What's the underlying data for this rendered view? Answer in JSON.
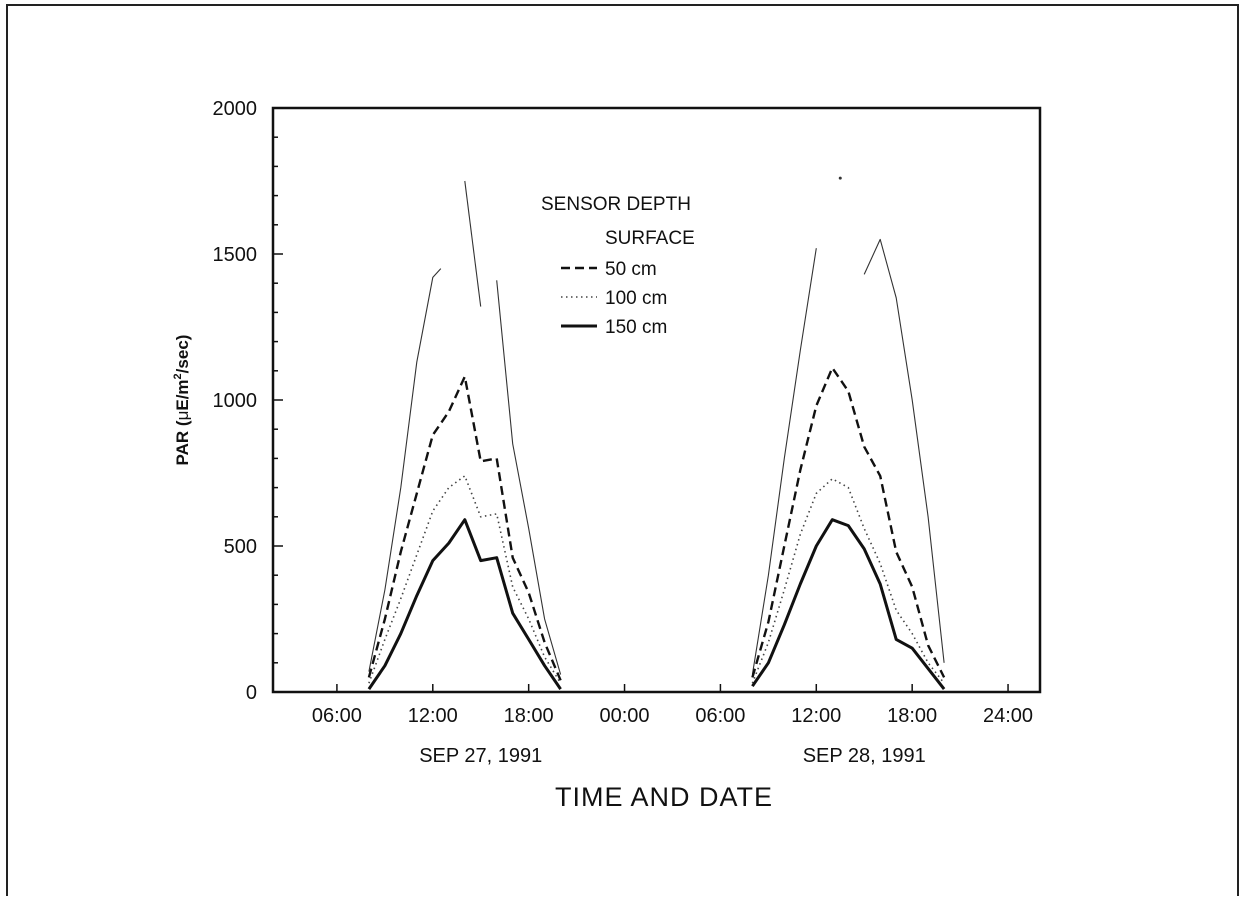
{
  "chart_data": {
    "type": "line",
    "xlabel": "TIME AND DATE",
    "ylabel_prefix": "PAR (",
    "ylabel_mu": "μ",
    "ylabel_unit": "E/m",
    "ylabel_sup": "2",
    "ylabel_suffix": "/sec)",
    "ylim": [
      0,
      2000
    ],
    "y_ticks": [
      "0",
      "500",
      "1000",
      "1500",
      "2000"
    ],
    "xlim": [
      "1991-09-27 02:00",
      "1991-09-29 02:00"
    ],
    "x_ticks": [
      {
        "time": "1991-09-27 06:00",
        "label": "06:00"
      },
      {
        "time": "1991-09-27 12:00",
        "label": "12:00"
      },
      {
        "time": "1991-09-27 18:00",
        "label": "18:00"
      },
      {
        "time": "1991-09-28 00:00",
        "label": "00:00"
      },
      {
        "time": "1991-09-28 06:00",
        "label": "06:00"
      },
      {
        "time": "1991-09-28 12:00",
        "label": "12:00"
      },
      {
        "time": "1991-09-28 18:00",
        "label": "18:00"
      },
      {
        "time": "1991-09-29 00:00",
        "label": "24:00"
      }
    ],
    "date_labels": [
      {
        "time": "1991-09-27 15:00",
        "label": "SEP 27, 1991"
      },
      {
        "time": "1991-09-28 15:00",
        "label": "SEP 28, 1991"
      }
    ],
    "legend": {
      "title": "SENSOR DEPTH",
      "position": "top-center"
    },
    "series": [
      {
        "name": "SURFACE",
        "style": "thin-solid",
        "segments": [
          [
            [
              "1991-09-27 08:00",
              70
            ],
            [
              "1991-09-27 09:00",
              350
            ],
            [
              "1991-09-27 10:00",
              700
            ],
            [
              "1991-09-27 11:00",
              1130
            ],
            [
              "1991-09-27 12:00",
              1420
            ],
            [
              "1991-09-27 12:30",
              1450
            ]
          ],
          [
            [
              "1991-09-27 14:00",
              1750
            ],
            [
              "1991-09-27 15:00",
              1320
            ]
          ],
          [
            [
              "1991-09-27 16:00",
              1410
            ],
            [
              "1991-09-27 17:00",
              850
            ],
            [
              "1991-09-27 18:00",
              560
            ],
            [
              "1991-09-27 19:00",
              250
            ],
            [
              "1991-09-27 20:00",
              60
            ]
          ],
          [
            [
              "1991-09-28 08:00",
              60
            ],
            [
              "1991-09-28 09:00",
              400
            ],
            [
              "1991-09-28 10:00",
              800
            ],
            [
              "1991-09-28 11:00",
              1170
            ],
            [
              "1991-09-28 12:00",
              1520
            ]
          ],
          [
            [
              "1991-09-28 13:30",
              1760
            ]
          ],
          [
            [
              "1991-09-28 15:00",
              1430
            ],
            [
              "1991-09-28 16:00",
              1550
            ],
            [
              "1991-09-28 17:00",
              1350
            ],
            [
              "1991-09-28 18:00",
              1000
            ],
            [
              "1991-09-28 19:00",
              600
            ],
            [
              "1991-09-28 20:00",
              100
            ]
          ]
        ]
      },
      {
        "name": "50 cm",
        "style": "dashed",
        "segments": [
          [
            [
              "1991-09-27 08:00",
              50
            ],
            [
              "1991-09-27 09:00",
              250
            ],
            [
              "1991-09-27 10:00",
              480
            ],
            [
              "1991-09-27 11:00",
              680
            ],
            [
              "1991-09-27 12:00",
              880
            ],
            [
              "1991-09-27 13:00",
              960
            ],
            [
              "1991-09-27 14:00",
              1080
            ],
            [
              "1991-09-27 15:00",
              790
            ],
            [
              "1991-09-27 16:00",
              800
            ],
            [
              "1991-09-27 17:00",
              460
            ],
            [
              "1991-09-27 18:00",
              340
            ],
            [
              "1991-09-27 19:00",
              170
            ],
            [
              "1991-09-27 20:00",
              40
            ]
          ],
          [
            [
              "1991-09-28 08:00",
              50
            ],
            [
              "1991-09-28 09:00",
              240
            ],
            [
              "1991-09-28 10:00",
              500
            ],
            [
              "1991-09-28 11:00",
              760
            ],
            [
              "1991-09-28 12:00",
              980
            ],
            [
              "1991-09-28 13:00",
              1110
            ],
            [
              "1991-09-28 14:00",
              1030
            ],
            [
              "1991-09-28 15:00",
              840
            ],
            [
              "1991-09-28 16:00",
              740
            ],
            [
              "1991-09-28 17:00",
              480
            ],
            [
              "1991-09-28 18:00",
              360
            ],
            [
              "1991-09-28 19:00",
              160
            ],
            [
              "1991-09-28 20:00",
              50
            ]
          ]
        ]
      },
      {
        "name": "100 cm",
        "style": "dotted",
        "segments": [
          [
            [
              "1991-09-27 08:00",
              30
            ],
            [
              "1991-09-27 09:00",
              180
            ],
            [
              "1991-09-27 10:00",
              320
            ],
            [
              "1991-09-27 11:00",
              470
            ],
            [
              "1991-09-27 12:00",
              620
            ],
            [
              "1991-09-27 13:00",
              700
            ],
            [
              "1991-09-27 14:00",
              740
            ],
            [
              "1991-09-27 15:00",
              600
            ],
            [
              "1991-09-27 16:00",
              610
            ],
            [
              "1991-09-27 17:00",
              360
            ],
            [
              "1991-09-27 18:00",
              250
            ],
            [
              "1991-09-27 19:00",
              120
            ],
            [
              "1991-09-27 20:00",
              30
            ]
          ],
          [
            [
              "1991-09-28 08:00",
              30
            ],
            [
              "1991-09-28 09:00",
              170
            ],
            [
              "1991-09-28 10:00",
              350
            ],
            [
              "1991-09-28 11:00",
              540
            ],
            [
              "1991-09-28 12:00",
              680
            ],
            [
              "1991-09-28 13:00",
              730
            ],
            [
              "1991-09-28 14:00",
              700
            ],
            [
              "1991-09-28 15:00",
              560
            ],
            [
              "1991-09-28 16:00",
              440
            ],
            [
              "1991-09-28 17:00",
              280
            ],
            [
              "1991-09-28 18:00",
              200
            ],
            [
              "1991-09-28 19:00",
              100
            ],
            [
              "1991-09-28 20:00",
              30
            ]
          ]
        ]
      },
      {
        "name": "150 cm",
        "style": "thick-solid",
        "segments": [
          [
            [
              "1991-09-27 08:00",
              10
            ],
            [
              "1991-09-27 09:00",
              90
            ],
            [
              "1991-09-27 10:00",
              200
            ],
            [
              "1991-09-27 11:00",
              330
            ],
            [
              "1991-09-27 12:00",
              450
            ],
            [
              "1991-09-27 13:00",
              510
            ],
            [
              "1991-09-27 14:00",
              590
            ],
            [
              "1991-09-27 15:00",
              450
            ],
            [
              "1991-09-27 16:00",
              460
            ],
            [
              "1991-09-27 17:00",
              270
            ],
            [
              "1991-09-27 18:00",
              180
            ],
            [
              "1991-09-27 19:00",
              90
            ],
            [
              "1991-09-27 20:00",
              10
            ]
          ],
          [
            [
              "1991-09-28 08:00",
              20
            ],
            [
              "1991-09-28 09:00",
              100
            ],
            [
              "1991-09-28 10:00",
              230
            ],
            [
              "1991-09-28 11:00",
              370
            ],
            [
              "1991-09-28 12:00",
              500
            ],
            [
              "1991-09-28 13:00",
              590
            ],
            [
              "1991-09-28 14:00",
              570
            ],
            [
              "1991-09-28 15:00",
              490
            ],
            [
              "1991-09-28 16:00",
              370
            ],
            [
              "1991-09-28 17:00",
              180
            ],
            [
              "1991-09-28 18:00",
              150
            ],
            [
              "1991-09-28 19:00",
              80
            ],
            [
              "1991-09-28 20:00",
              10
            ]
          ]
        ]
      }
    ]
  }
}
